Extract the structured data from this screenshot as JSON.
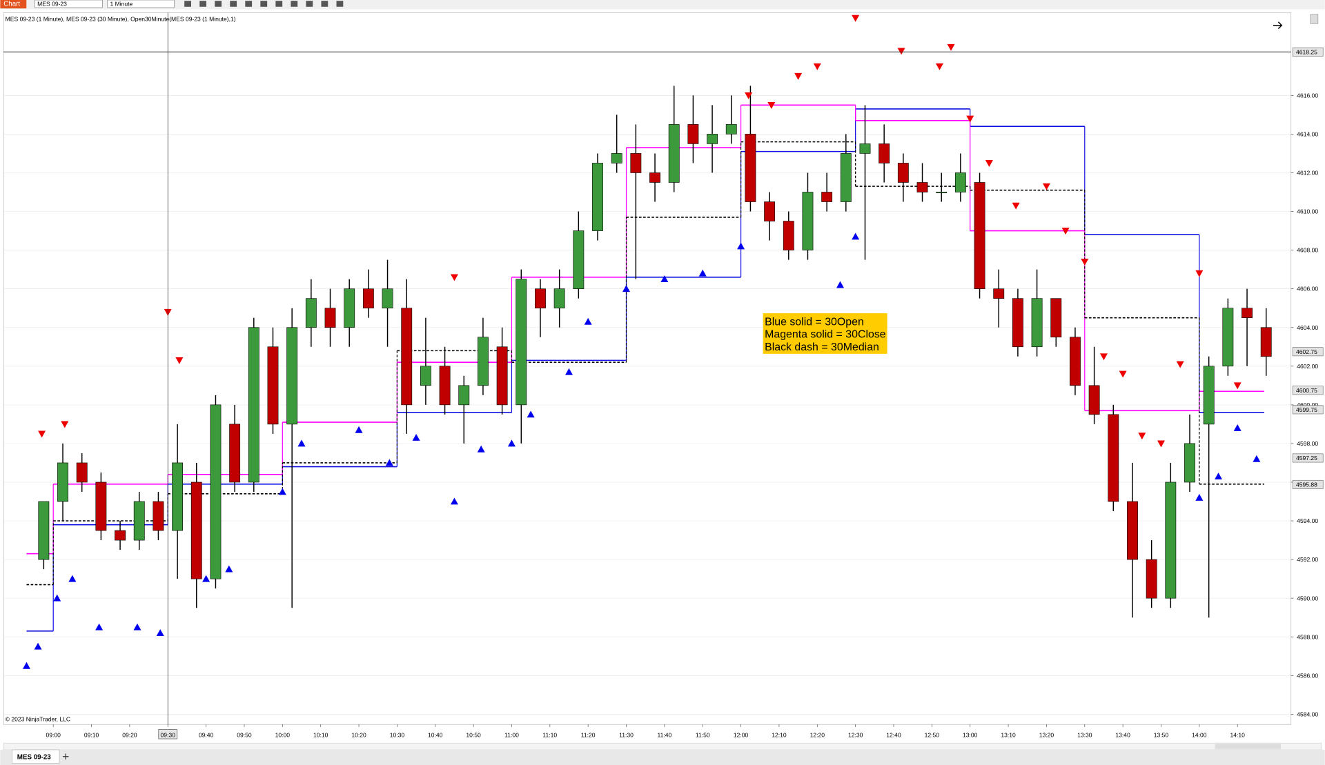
{
  "toolbar": {
    "tab": "Chart",
    "instrument": "MES 09-23",
    "interval": "1 Minute"
  },
  "tabs": {
    "active": "MES 09-23"
  },
  "chart_data": {
    "type": "candlestick",
    "title": "MES 09-23 (1 Minute), MES 09-23 (30 Minute), Open30Minute(MES 09-23 (1 Minute),1)",
    "copyright": "© 2023 NinjaTrader, LLC",
    "annotations": [
      "Blue solid = 30Open",
      "Magenta solid = 30Close",
      "Black dash = 30Median"
    ],
    "xlim": [
      "08:47",
      "14:24"
    ],
    "xticks": [
      "09:00",
      "09:10",
      "09:20",
      "09:30",
      "09:40",
      "09:50",
      "10:00",
      "10:10",
      "10:20",
      "10:30",
      "10:40",
      "10:50",
      "11:00",
      "11:10",
      "11:20",
      "11:30",
      "11:40",
      "11:50",
      "12:00",
      "12:10",
      "12:20",
      "12:30",
      "12:40",
      "12:50",
      "13:00",
      "13:10",
      "13:20",
      "13:30",
      "13:40",
      "13:50",
      "14:00",
      "14:10"
    ],
    "ylim": [
      4583.47,
      4620.28
    ],
    "yticks": [
      {
        "value": 4584,
        "label": "4584.00"
      },
      {
        "value": 4586,
        "label": "4586.00"
      },
      {
        "value": 4588,
        "label": "4588.00"
      },
      {
        "value": 4590,
        "label": "4590.00"
      },
      {
        "value": 4592,
        "label": "4592.00"
      },
      {
        "value": 4594,
        "label": "4594.00"
      },
      {
        "value": 4596,
        "label": "4596.00"
      },
      {
        "value": 4598,
        "label": "4598.00"
      },
      {
        "value": 4600,
        "label": "4600.00"
      },
      {
        "value": 4602,
        "label": "4602.00"
      },
      {
        "value": 4604,
        "label": "4604.00"
      },
      {
        "value": 4606,
        "label": "4606.00"
      },
      {
        "value": 4608,
        "label": "4608.00"
      },
      {
        "value": 4610,
        "label": "4610.00"
      },
      {
        "value": 4612,
        "label": "4612.00"
      },
      {
        "value": 4614,
        "label": "4614.00"
      },
      {
        "value": 4616,
        "label": "4616.00"
      }
    ],
    "grid": true,
    "crosshair": {
      "x": "09:30",
      "y": {
        "value": 4618.25,
        "label": "4618.25"
      }
    },
    "price_markers": [
      {
        "value": 4602.75,
        "label": "4602.75"
      },
      {
        "value": 4600.75,
        "label": "4600.75"
      },
      {
        "value": 4599.75,
        "label": "4599.75"
      },
      {
        "value": 4597.25,
        "label": "4597.25"
      },
      {
        "value": 4595.88,
        "label": "4595.88"
      }
    ],
    "up_color": "#3c9a3c",
    "down_color": "#c00000",
    "x": [
      "08:55",
      "09:00",
      "09:05",
      "09:10",
      "09:15",
      "09:20",
      "09:25",
      "09:30",
      "09:35",
      "09:40",
      "09:45",
      "09:50",
      "09:55",
      "10:00",
      "10:05",
      "10:10",
      "10:15",
      "10:20",
      "10:25",
      "10:30",
      "10:35",
      "10:40",
      "10:45",
      "10:50",
      "10:55",
      "11:00",
      "11:05",
      "11:10",
      "11:15",
      "11:20",
      "11:25",
      "11:30",
      "11:35",
      "11:40",
      "11:45",
      "11:50",
      "11:55",
      "12:00",
      "12:05",
      "12:10",
      "12:15",
      "12:20",
      "12:25",
      "12:30",
      "12:35",
      "12:40",
      "12:45",
      "12:50",
      "12:55",
      "13:00",
      "13:05",
      "13:10",
      "13:15",
      "13:20",
      "13:25",
      "13:30",
      "13:35",
      "13:40",
      "13:45",
      "13:50",
      "13:55",
      "14:00",
      "14:05",
      "14:10",
      "14:15"
    ],
    "open": [
      4592,
      4595,
      4597,
      4596,
      4593.5,
      4593,
      4595,
      4593.5,
      4596,
      4591,
      4599,
      4596,
      4603,
      4599,
      4604,
      4605,
      4604,
      4606,
      4605,
      4605,
      4601,
      4602,
      4600,
      4601,
      4603,
      4600,
      4606,
      4605,
      4606,
      4609,
      4612.5,
      4613,
      4612,
      4611.5,
      4614.5,
      4613.5,
      4614,
      4614,
      4610.5,
      4609.5,
      4608,
      4611,
      4610.5,
      4613,
      4613.5,
      4612.5,
      4611.5,
      4611,
      4611,
      4611.5,
      4606,
      4605.5,
      4603,
      4605.5,
      4603.5,
      4601,
      4599.5,
      4595,
      4592,
      4590,
      4596,
      4599,
      4602,
      4605,
      4604
    ],
    "high": [
      4595,
      4598,
      4597.5,
      4596.5,
      4594,
      4595.5,
      4595.5,
      4599,
      4597,
      4600.5,
      4600,
      4604.5,
      4604,
      4605,
      4606.5,
      4606,
      4606.5,
      4607,
      4607.5,
      4606.5,
      4604.5,
      4603,
      4601.5,
      4604.5,
      4604,
      4607,
      4606.5,
      4607,
      4610,
      4613,
      4615,
      4614.5,
      4613,
      4616.5,
      4616,
      4615.5,
      4616,
      4616.5,
      4611,
      4610,
      4612,
      4612,
      4614,
      4615.5,
      4614.5,
      4613,
      4612.5,
      4612,
      4613,
      4612,
      4607,
      4606,
      4607,
      4605.5,
      4604,
      4603,
      4600,
      4597,
      4593,
      4597,
      4599.5,
      4602.5,
      4605.5,
      4606,
      4605
    ],
    "low": [
      4591.5,
      4594,
      4595.5,
      4593,
      4592.5,
      4592.5,
      4593,
      4591,
      4589.5,
      4590.5,
      4595.5,
      4595.5,
      4598.5,
      4589.5,
      4603,
      4603,
      4603,
      4604.5,
      4603,
      4598.5,
      4600,
      4599.5,
      4598,
      4600.5,
      4599.5,
      4598,
      4603.5,
      4604,
      4605.5,
      4608.5,
      4612,
      4606.5,
      4610.5,
      4611,
      4612.5,
      4612,
      4613.5,
      4610,
      4608.5,
      4607.5,
      4607.5,
      4610,
      4610,
      4607.5,
      4611.5,
      4610.5,
      4610.5,
      4610.5,
      4610.5,
      4605.5,
      4604,
      4602.5,
      4602.5,
      4603,
      4600.5,
      4599,
      4594.5,
      4589,
      4589.5,
      4589.5,
      4595.5,
      4589,
      4601.5,
      4602,
      4601.5
    ],
    "close": [
      4595,
      4597,
      4596,
      4593.5,
      4593,
      4595,
      4593.5,
      4597,
      4591,
      4600,
      4596,
      4604,
      4599,
      4604,
      4605.5,
      4604,
      4606,
      4605,
      4606,
      4600,
      4602,
      4600,
      4601,
      4603.5,
      4600,
      4606.5,
      4605,
      4606,
      4609,
      4612.5,
      4613,
      4612,
      4611.5,
      4614.5,
      4613.5,
      4614,
      4614.5,
      4610.5,
      4609.5,
      4608,
      4611,
      4610.5,
      4613,
      4613.5,
      4612.5,
      4611.5,
      4611,
      4611,
      4612,
      4606,
      4605.5,
      4603,
      4605.5,
      4603.5,
      4601,
      4599.5,
      4595,
      4592,
      4590,
      4596,
      4598,
      4602,
      4605,
      4604.5,
      4602.5
    ],
    "segment_x": [
      "08:53",
      "09:00",
      "09:30",
      "10:00",
      "10:30",
      "11:00",
      "11:30",
      "12:00",
      "12:30",
      "13:00",
      "13:30",
      "14:00",
      "14:17"
    ],
    "lines": [
      {
        "color": "#1010e0",
        "dash": false,
        "values": [
          4588.3,
          4593.8,
          4595.9,
          4596.8,
          4599.6,
          4602.3,
          4606.6,
          4613.1,
          4615.3,
          4614.4,
          4608.8,
          4599.6
        ]
      },
      {
        "color": "#ff00ff",
        "dash": false,
        "values": [
          4592.3,
          4595.9,
          4596.4,
          4599.1,
          4602.2,
          4606.6,
          4613.3,
          4615.5,
          4614.7,
          4609.0,
          4599.7,
          4600.7
        ]
      },
      {
        "color": "#000000",
        "dash": true,
        "values": [
          4590.7,
          4594,
          4595.4,
          4597.0,
          4602.8,
          4602.2,
          4609.7,
          4613.6,
          4611.3,
          4611.1,
          4604.5,
          4595.9
        ]
      }
    ],
    "buy_signals": {
      "color": "#0000ee",
      "x": [
        "08:53",
        "08:56",
        "09:01",
        "09:05",
        "09:12",
        "09:22",
        "09:28",
        "09:40",
        "09:46",
        "10:00",
        "10:05",
        "10:20",
        "10:28",
        "10:35",
        "10:45",
        "10:52",
        "11:00",
        "11:05",
        "11:15",
        "11:20",
        "11:30",
        "11:40",
        "11:50",
        "12:00",
        "12:26",
        "12:30",
        "14:00",
        "14:05",
        "14:10",
        "14:15"
      ],
      "values": [
        4586.5,
        4587.5,
        4590,
        4591,
        4588.5,
        4588.5,
        4588.2,
        4591,
        4591.5,
        4595.5,
        4598,
        4598.7,
        4597,
        4598.3,
        4595,
        4597.7,
        4598,
        4599.5,
        4601.7,
        4604.3,
        4606,
        4606.5,
        4606.8,
        4608.2,
        4606.2,
        4608.7,
        4595.2,
        4596.3,
        4598.8,
        4597.2
      ]
    },
    "sell_signals": {
      "color": "#ee0000",
      "x": [
        "08:57",
        "09:03",
        "09:30",
        "09:33",
        "10:45",
        "12:02",
        "12:08",
        "12:15",
        "12:20",
        "12:30",
        "12:42",
        "12:52",
        "12:55",
        "13:00",
        "13:05",
        "13:12",
        "13:20",
        "13:25",
        "13:30",
        "13:35",
        "13:40",
        "13:45",
        "13:50",
        "13:55",
        "14:00",
        "14:10"
      ],
      "values": [
        4598.5,
        4599,
        4604.8,
        4602.3,
        4606.6,
        4616,
        4615.5,
        4617,
        4617.5,
        4620,
        4618.3,
        4617.5,
        4618.5,
        4614.8,
        4612.5,
        4610.3,
        4611.3,
        4609,
        4607.4,
        4602.5,
        4601.6,
        4598.4,
        4598.0,
        4602.1,
        4606.8,
        4601
      ]
    }
  }
}
